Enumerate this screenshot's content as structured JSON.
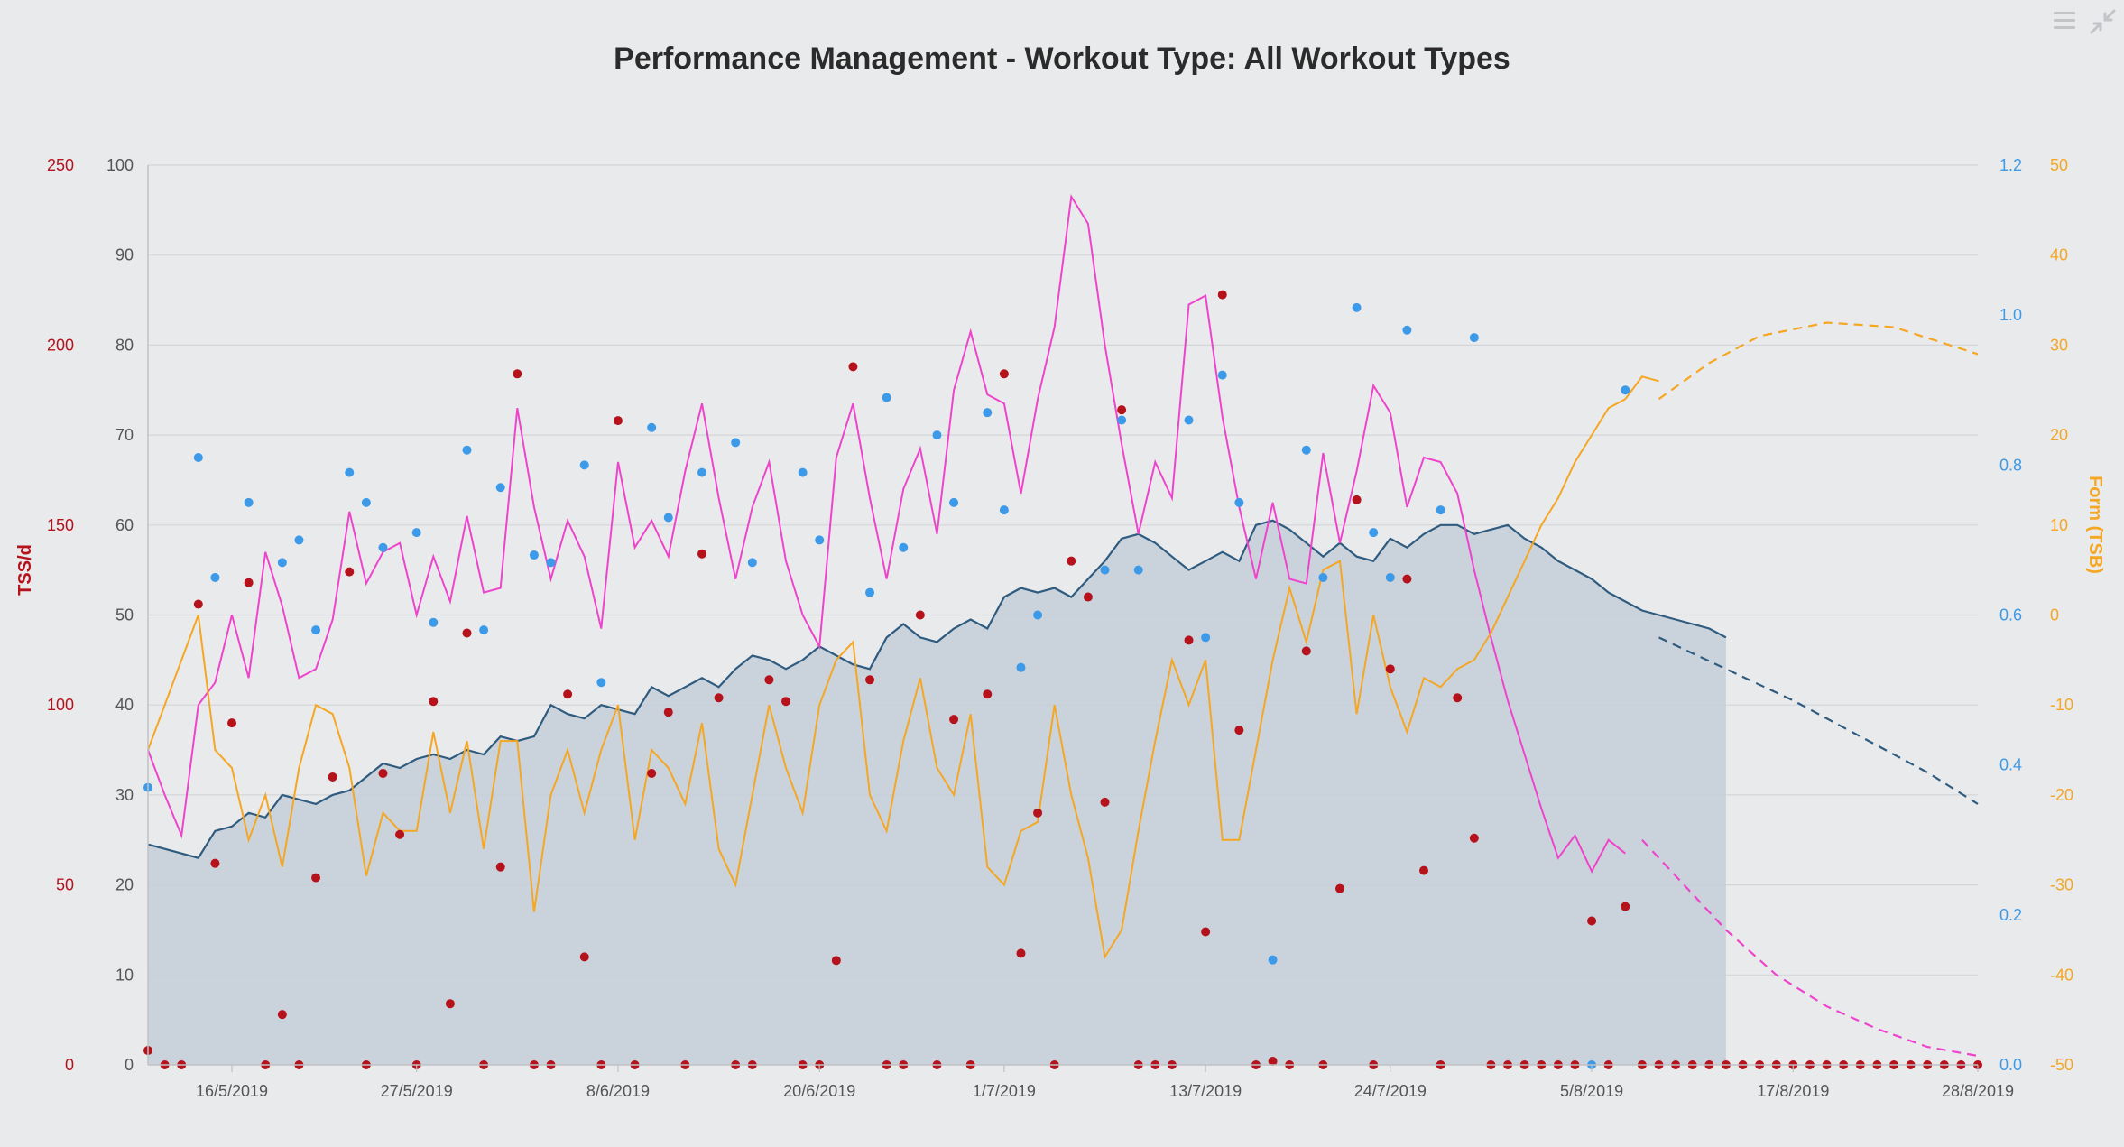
{
  "chart_data": {
    "type": "line",
    "title": "Performance Management - Workout Type: All Workout Types",
    "colors": {
      "tss": "#b5121b",
      "fitness": "#2f5b7f",
      "fitness_fill": "#c4cfd9",
      "fatigue": "#ee44cc",
      "form": "#f5a623",
      "if": "#3d9ae8",
      "left_axis": "#555555"
    },
    "axes": {
      "tss_left": {
        "title": "TSS/d",
        "min": 0,
        "max": 250,
        "ticks": [
          "0",
          "50",
          "100",
          "150",
          "200",
          "250"
        ],
        "color": "#b5121b"
      },
      "primary_left": {
        "title": "",
        "min": 0,
        "max": 100,
        "ticks": [
          "0",
          "10",
          "20",
          "30",
          "40",
          "50",
          "60",
          "70",
          "80",
          "90",
          "100"
        ]
      },
      "if_right": {
        "title": "",
        "min": 0.0,
        "max": 1.2,
        "ticks": [
          "0.0",
          "0.2",
          "0.4",
          "0.6",
          "0.8",
          "1.0",
          "1.2"
        ],
        "color": "#3d9ae8"
      },
      "form_right": {
        "title": "Form (TSB)",
        "min": -50,
        "max": 50,
        "ticks": [
          "-50",
          "-40",
          "-30",
          "-20",
          "-10",
          "0",
          "10",
          "20",
          "30",
          "40",
          "50"
        ],
        "color": "#f5a623"
      },
      "x": {
        "start": "2019-05-11",
        "end": "2019-08-28",
        "ticks": [
          "16/5/2019",
          "27/5/2019",
          "8/6/2019",
          "20/6/2019",
          "1/7/2019",
          "13/7/2019",
          "24/7/2019",
          "5/8/2019",
          "17/8/2019",
          "28/8/2019"
        ],
        "grid": true
      }
    },
    "series": [
      {
        "key": "fitness",
        "kind": "area",
        "axis": "primary_left",
        "start": "2019-05-11",
        "values": [
          24.5,
          24,
          23.5,
          23,
          26,
          26.5,
          28,
          27.5,
          30,
          29.5,
          29,
          30,
          30.5,
          32,
          33.5,
          33,
          34,
          34.5,
          34,
          35,
          34.5,
          36.5,
          36,
          36.5,
          40,
          39,
          38.5,
          40,
          39.5,
          39,
          42,
          41,
          42,
          43,
          42,
          44,
          45.5,
          45,
          44,
          45,
          46.5,
          45.5,
          44.5,
          44,
          47.5,
          49,
          47.5,
          47,
          48.5,
          49.5,
          48.5,
          52,
          53,
          52.5,
          53,
          52,
          54,
          56,
          58.5,
          59,
          58,
          56.5,
          55,
          56,
          57,
          56,
          60,
          60.5,
          59.5,
          58,
          56.5,
          58,
          56.5,
          56,
          58.5,
          57.5,
          59,
          60,
          60,
          59,
          59.5,
          60,
          58.5,
          57.5,
          56,
          55,
          54,
          52.5,
          51.5,
          50.5,
          50,
          49.5,
          49,
          48.5,
          47.5
        ]
      },
      {
        "key": "fitness_projection",
        "kind": "dashed",
        "axis": "primary_left",
        "points": [
          [
            "2019-08-09",
            47.5
          ],
          [
            "2019-08-13",
            44
          ],
          [
            "2019-08-17",
            40.5
          ],
          [
            "2019-08-21",
            36.5
          ],
          [
            "2019-08-25",
            32.5
          ],
          [
            "2019-08-28",
            29
          ]
        ]
      },
      {
        "key": "fatigue",
        "kind": "line",
        "axis": "primary_left",
        "start": "2019-05-11",
        "values": [
          35,
          30,
          25.5,
          40,
          42.5,
          50,
          43,
          57,
          51,
          43,
          44,
          49.5,
          61.5,
          53.5,
          57,
          58,
          50,
          56.5,
          51.5,
          61,
          52.5,
          53,
          73,
          62,
          54,
          60.5,
          56.5,
          48.5,
          67,
          57.5,
          60.5,
          56.5,
          66,
          73.5,
          63,
          54,
          62,
          67,
          56,
          50,
          46.5,
          67.5,
          73.5,
          63,
          54,
          64,
          68.5,
          59,
          75,
          81.5,
          74.5,
          73.5,
          63.5,
          74,
          82,
          96.5,
          93.5,
          80,
          69,
          59,
          67,
          63,
          84.5,
          85.5,
          72,
          62,
          54,
          62.5,
          54,
          53.5,
          68,
          58,
          66,
          75.5,
          72.5,
          62,
          67.5,
          67,
          63.5,
          55,
          47.5,
          40.5,
          34.5,
          28.5,
          23,
          25.5,
          21.5,
          25,
          23.5
        ]
      },
      {
        "key": "fatigue_projection",
        "kind": "dashed",
        "axis": "primary_left",
        "points": [
          [
            "2019-08-08",
            25
          ],
          [
            "2019-08-10",
            21
          ],
          [
            "2019-08-13",
            15
          ],
          [
            "2019-08-16",
            10
          ],
          [
            "2019-08-19",
            6.5
          ],
          [
            "2019-08-22",
            4
          ],
          [
            "2019-08-25",
            2
          ],
          [
            "2019-08-28",
            1
          ]
        ]
      },
      {
        "key": "form",
        "kind": "line",
        "axis": "form_right",
        "start": "2019-05-11",
        "values": [
          -15,
          -10,
          -5,
          0,
          -15,
          -17,
          -25,
          -20,
          -28,
          -17,
          -10,
          -11,
          -17,
          -29,
          -22,
          -24,
          -24,
          -13,
          -22,
          -14,
          -26,
          -14,
          -14,
          -33,
          -20,
          -15,
          -22,
          -15,
          -10,
          -25,
          -15,
          -17,
          -21,
          -12,
          -26,
          -30,
          -20,
          -10,
          -17,
          -22,
          -10,
          -5,
          -3,
          -20,
          -24,
          -14,
          -7,
          -17,
          -20,
          -11,
          -28,
          -30,
          -24,
          -23,
          -10,
          -20,
          -27,
          -38,
          -35,
          -24,
          -14,
          -5,
          -10,
          -5,
          -25,
          -25,
          -15,
          -5,
          3,
          -3,
          5,
          6,
          -11,
          0,
          -8,
          -13,
          -7,
          -8,
          -6,
          -5,
          -2,
          2,
          6,
          10,
          13,
          17,
          20,
          23,
          24,
          26.5,
          26
        ]
      },
      {
        "key": "form_projection",
        "kind": "dashed",
        "axis": "form_right",
        "points": [
          [
            "2019-08-09",
            24
          ],
          [
            "2019-08-12",
            28
          ],
          [
            "2019-08-15",
            31
          ],
          [
            "2019-08-19",
            32.5
          ],
          [
            "2019-08-23",
            32
          ],
          [
            "2019-08-28",
            29
          ]
        ]
      }
    ],
    "tss_points": {
      "axis": "tss_left",
      "points": [
        [
          "2019-05-11",
          4
        ],
        [
          "2019-05-12",
          0
        ],
        [
          "2019-05-13",
          0
        ],
        [
          "2019-05-14",
          128
        ],
        [
          "2019-05-15",
          56
        ],
        [
          "2019-05-16",
          95
        ],
        [
          "2019-05-17",
          134
        ],
        [
          "2019-05-18",
          0
        ],
        [
          "2019-05-19",
          14
        ],
        [
          "2019-05-20",
          0
        ],
        [
          "2019-05-21",
          52
        ],
        [
          "2019-05-22",
          80
        ],
        [
          "2019-05-23",
          137
        ],
        [
          "2019-05-24",
          0
        ],
        [
          "2019-05-25",
          81
        ],
        [
          "2019-05-26",
          64
        ],
        [
          "2019-05-27",
          0
        ],
        [
          "2019-05-28",
          101
        ],
        [
          "2019-05-29",
          17
        ],
        [
          "2019-05-30",
          120
        ],
        [
          "2019-05-31",
          0
        ],
        [
          "2019-06-01",
          55
        ],
        [
          "2019-06-02",
          192
        ],
        [
          "2019-06-03",
          0
        ],
        [
          "2019-06-04",
          0
        ],
        [
          "2019-06-05",
          103
        ],
        [
          "2019-06-06",
          30
        ],
        [
          "2019-06-07",
          0
        ],
        [
          "2019-06-08",
          179
        ],
        [
          "2019-06-09",
          0
        ],
        [
          "2019-06-10",
          81
        ],
        [
          "2019-06-11",
          98
        ],
        [
          "2019-06-12",
          0
        ],
        [
          "2019-06-13",
          142
        ],
        [
          "2019-06-14",
          102
        ],
        [
          "2019-06-15",
          0
        ],
        [
          "2019-06-16",
          0
        ],
        [
          "2019-06-17",
          107
        ],
        [
          "2019-06-18",
          101
        ],
        [
          "2019-06-19",
          0
        ],
        [
          "2019-06-20",
          0
        ],
        [
          "2019-06-21",
          29
        ],
        [
          "2019-06-22",
          194
        ],
        [
          "2019-06-23",
          107
        ],
        [
          "2019-06-24",
          0
        ],
        [
          "2019-06-25",
          0
        ],
        [
          "2019-06-26",
          125
        ],
        [
          "2019-06-27",
          0
        ],
        [
          "2019-06-28",
          96
        ],
        [
          "2019-06-29",
          0
        ],
        [
          "2019-06-30",
          103
        ],
        [
          "2019-07-01",
          192
        ],
        [
          "2019-07-02",
          31
        ],
        [
          "2019-07-03",
          70
        ],
        [
          "2019-07-04",
          0
        ],
        [
          "2019-07-05",
          140
        ],
        [
          "2019-07-06",
          130
        ],
        [
          "2019-07-07",
          73
        ],
        [
          "2019-07-08",
          182
        ],
        [
          "2019-07-09",
          0
        ],
        [
          "2019-07-10",
          0
        ],
        [
          "2019-07-11",
          0
        ],
        [
          "2019-07-12",
          118
        ],
        [
          "2019-07-13",
          37
        ],
        [
          "2019-07-14",
          214
        ],
        [
          "2019-07-15",
          93
        ],
        [
          "2019-07-16",
          0
        ],
        [
          "2019-07-17",
          1
        ],
        [
          "2019-07-18",
          0
        ],
        [
          "2019-07-19",
          115
        ],
        [
          "2019-07-20",
          0
        ],
        [
          "2019-07-21",
          49
        ],
        [
          "2019-07-22",
          157
        ],
        [
          "2019-07-23",
          0
        ],
        [
          "2019-07-24",
          110
        ],
        [
          "2019-07-25",
          135
        ],
        [
          "2019-07-26",
          54
        ],
        [
          "2019-07-27",
          0
        ],
        [
          "2019-07-28",
          102
        ],
        [
          "2019-07-29",
          63
        ],
        [
          "2019-07-30",
          0
        ],
        [
          "2019-07-31",
          0
        ],
        [
          "2019-08-01",
          0
        ],
        [
          "2019-08-02",
          0
        ],
        [
          "2019-08-03",
          0
        ],
        [
          "2019-08-04",
          0
        ],
        [
          "2019-08-05",
          40
        ],
        [
          "2019-08-06",
          0
        ],
        [
          "2019-08-07",
          44
        ],
        [
          "2019-08-08",
          0
        ],
        [
          "2019-08-09",
          0
        ],
        [
          "2019-08-10",
          0
        ],
        [
          "2019-08-11",
          0
        ],
        [
          "2019-08-12",
          0
        ],
        [
          "2019-08-13",
          0
        ],
        [
          "2019-08-14",
          0
        ],
        [
          "2019-08-15",
          0
        ],
        [
          "2019-08-16",
          0
        ],
        [
          "2019-08-17",
          0
        ],
        [
          "2019-08-18",
          0
        ],
        [
          "2019-08-19",
          0
        ],
        [
          "2019-08-20",
          0
        ],
        [
          "2019-08-21",
          0
        ],
        [
          "2019-08-22",
          0
        ],
        [
          "2019-08-23",
          0
        ],
        [
          "2019-08-24",
          0
        ],
        [
          "2019-08-25",
          0
        ],
        [
          "2019-08-26",
          0
        ],
        [
          "2019-08-27",
          0
        ],
        [
          "2019-08-28",
          0
        ]
      ]
    },
    "if_points": {
      "axis": "if_right",
      "points": [
        [
          "2019-05-11",
          0.37
        ],
        [
          "2019-05-14",
          0.81
        ],
        [
          "2019-05-15",
          0.65
        ],
        [
          "2019-05-17",
          0.75
        ],
        [
          "2019-05-19",
          0.67
        ],
        [
          "2019-05-20",
          0.7
        ],
        [
          "2019-05-21",
          0.58
        ],
        [
          "2019-05-23",
          0.79
        ],
        [
          "2019-05-24",
          0.75
        ],
        [
          "2019-05-25",
          0.69
        ],
        [
          "2019-05-27",
          0.71
        ],
        [
          "2019-05-28",
          0.59
        ],
        [
          "2019-05-30",
          0.82
        ],
        [
          "2019-05-31",
          0.58
        ],
        [
          "2019-06-01",
          0.77
        ],
        [
          "2019-06-03",
          0.68
        ],
        [
          "2019-06-04",
          0.67
        ],
        [
          "2019-06-06",
          0.8
        ],
        [
          "2019-06-07",
          0.51
        ],
        [
          "2019-06-10",
          0.85
        ],
        [
          "2019-06-11",
          0.73
        ],
        [
          "2019-06-13",
          0.79
        ],
        [
          "2019-06-15",
          0.83
        ],
        [
          "2019-06-16",
          0.67
        ],
        [
          "2019-06-19",
          0.79
        ],
        [
          "2019-06-20",
          0.7
        ],
        [
          "2019-06-23",
          0.63
        ],
        [
          "2019-06-24",
          0.89
        ],
        [
          "2019-06-25",
          0.69
        ],
        [
          "2019-06-27",
          0.84
        ],
        [
          "2019-06-28",
          0.75
        ],
        [
          "2019-06-30",
          0.87
        ],
        [
          "2019-07-01",
          0.74
        ],
        [
          "2019-07-02",
          0.53
        ],
        [
          "2019-07-03",
          0.6
        ],
        [
          "2019-07-07",
          0.66
        ],
        [
          "2019-07-08",
          0.86
        ],
        [
          "2019-07-09",
          0.66
        ],
        [
          "2019-07-12",
          0.86
        ],
        [
          "2019-07-13",
          0.57
        ],
        [
          "2019-07-14",
          0.92
        ],
        [
          "2019-07-15",
          0.75
        ],
        [
          "2019-07-17",
          0.14
        ],
        [
          "2019-07-19",
          0.82
        ],
        [
          "2019-07-20",
          0.65
        ],
        [
          "2019-07-22",
          1.01
        ],
        [
          "2019-07-23",
          0.71
        ],
        [
          "2019-07-24",
          0.65
        ],
        [
          "2019-07-25",
          0.98
        ],
        [
          "2019-07-27",
          0.74
        ],
        [
          "2019-07-29",
          0.97
        ],
        [
          "2019-08-05",
          0.0
        ],
        [
          "2019-08-07",
          0.9
        ]
      ]
    }
  }
}
